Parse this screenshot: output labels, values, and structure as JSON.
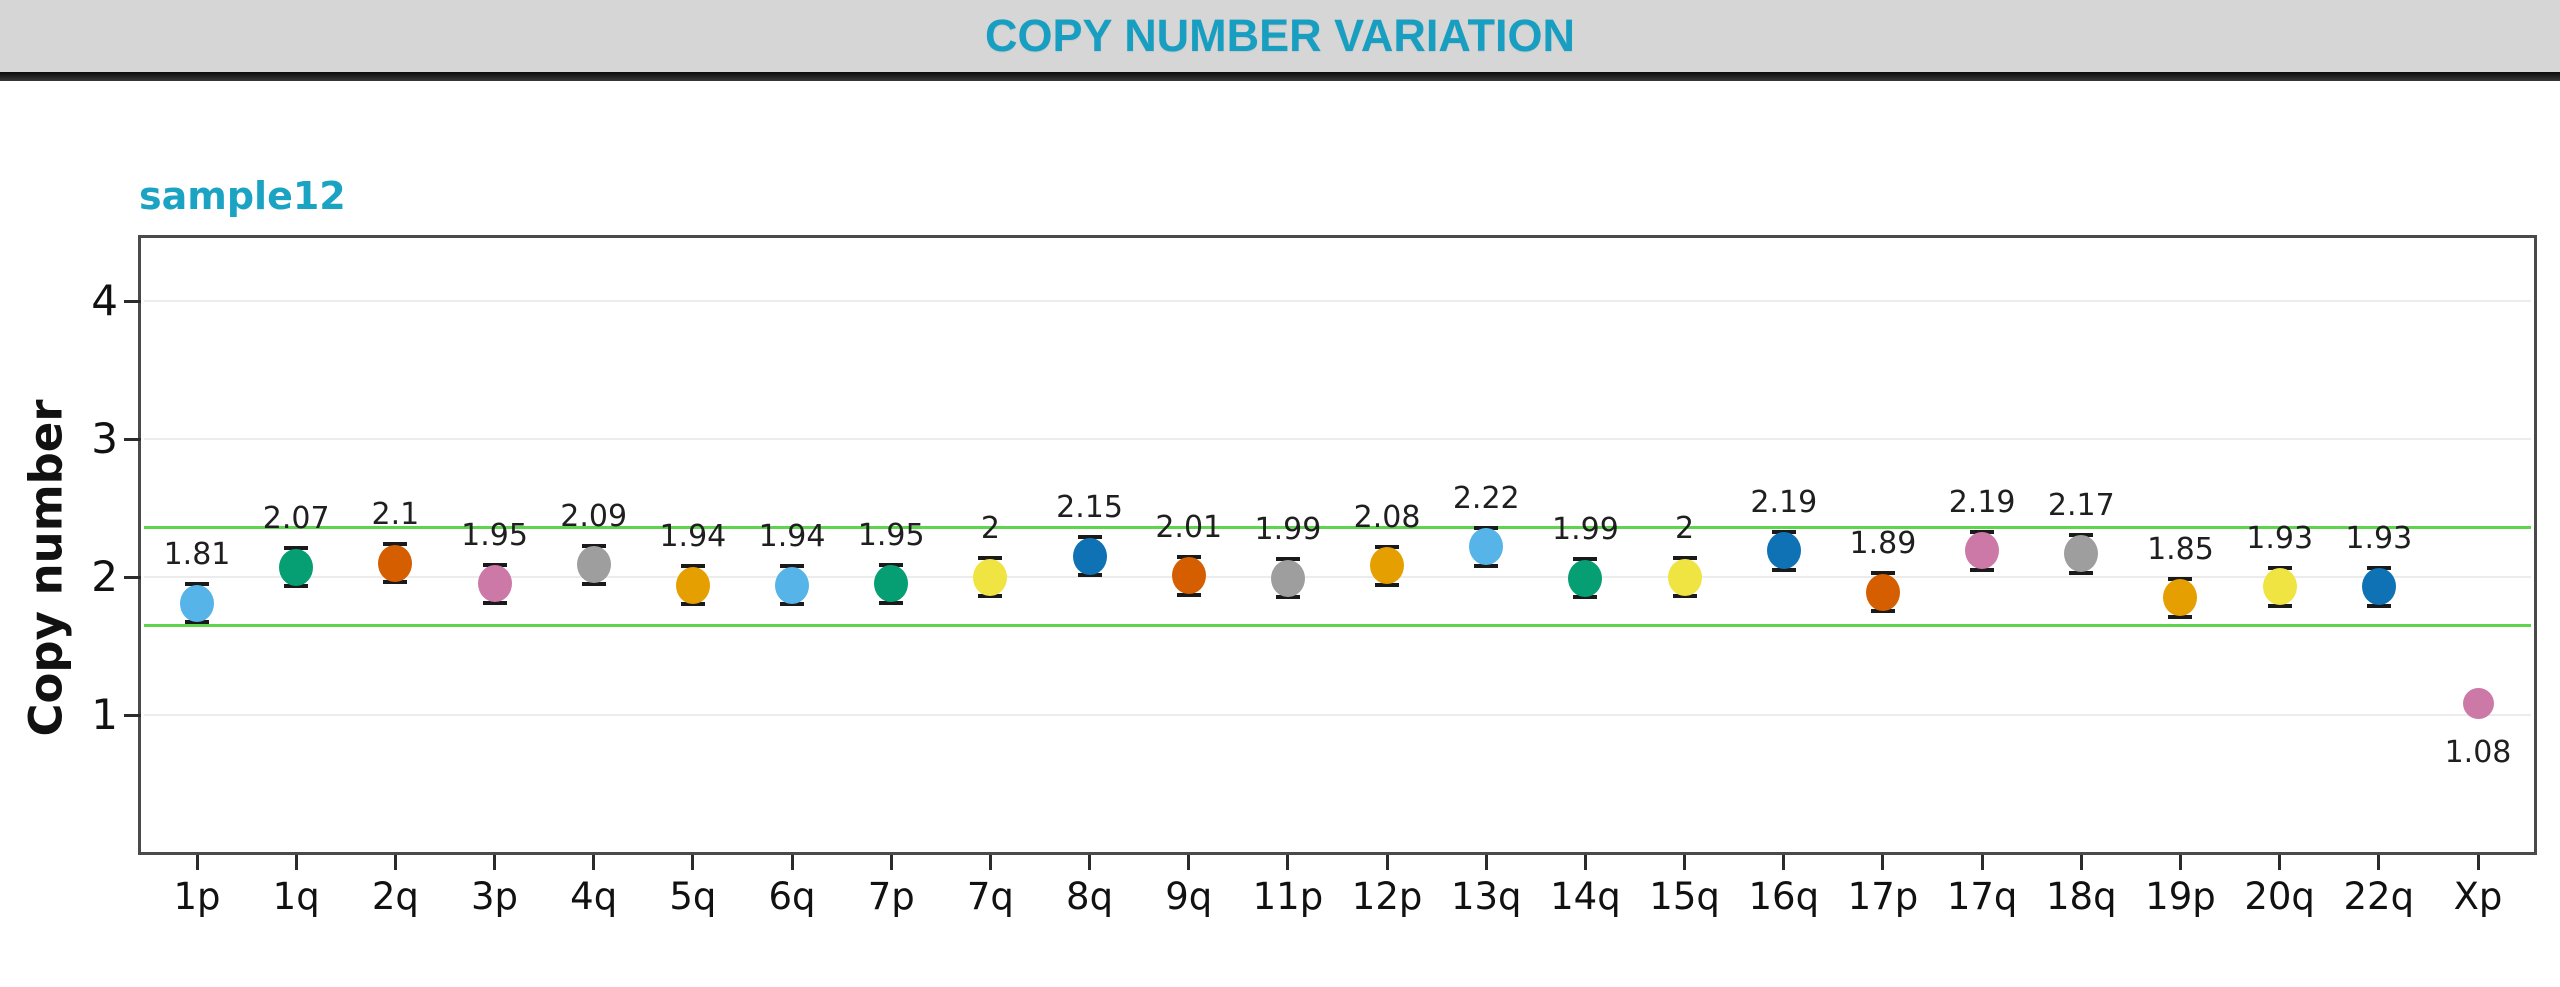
{
  "header": {
    "title": "COPY NUMBER VARIATION",
    "title_color": "#189EC0",
    "background_color": "#D6D6D6"
  },
  "chart": {
    "sample_label": "sample12",
    "sample_label_color": "#1BA3C4",
    "y_axis_title": "Copy number"
  },
  "chart_data": {
    "type": "scatter",
    "title": "sample12",
    "xlabel": "",
    "ylabel": "Copy number",
    "ylim": [
      0,
      4.48
    ],
    "yticks": [
      1,
      2,
      3,
      4
    ],
    "grid": true,
    "legend": "none",
    "thresholds": {
      "upper": 2.36,
      "lower": 1.65,
      "color": "#5ED34E"
    },
    "categories": [
      "1p",
      "1q",
      "2q",
      "3p",
      "4q",
      "5q",
      "6q",
      "7p",
      "7q",
      "8q",
      "9q",
      "11p",
      "12p",
      "13q",
      "14q",
      "15q",
      "16q",
      "17p",
      "17q",
      "18q",
      "19p",
      "20q",
      "22q",
      "Xp"
    ],
    "points": [
      {
        "arm": "1p",
        "value": 1.81,
        "label": "1.81",
        "color": "#56B4E9",
        "error_caps": true,
        "label_position": "above"
      },
      {
        "arm": "1q",
        "value": 2.07,
        "label": "2.07",
        "color": "#069E73",
        "error_caps": true,
        "label_position": "above"
      },
      {
        "arm": "2q",
        "value": 2.1,
        "label": "2.1",
        "color": "#D55E00",
        "error_caps": true,
        "label_position": "above"
      },
      {
        "arm": "3p",
        "value": 1.95,
        "label": "1.95",
        "color": "#CC79A7",
        "error_caps": true,
        "label_position": "above"
      },
      {
        "arm": "4q",
        "value": 2.09,
        "label": "2.09",
        "color": "#9E9E9E",
        "error_caps": true,
        "label_position": "above"
      },
      {
        "arm": "5q",
        "value": 1.94,
        "label": "1.94",
        "color": "#E69F00",
        "error_caps": true,
        "label_position": "above"
      },
      {
        "arm": "6q",
        "value": 1.94,
        "label": "1.94",
        "color": "#56B4E9",
        "error_caps": true,
        "label_position": "above"
      },
      {
        "arm": "7p",
        "value": 1.95,
        "label": "1.95",
        "color": "#069E73",
        "error_caps": true,
        "label_position": "above"
      },
      {
        "arm": "7q",
        "value": 2.0,
        "label": "2",
        "color": "#F0E442",
        "error_caps": true,
        "label_position": "above"
      },
      {
        "arm": "8q",
        "value": 2.15,
        "label": "2.15",
        "color": "#0F72B4",
        "error_caps": true,
        "label_position": "above"
      },
      {
        "arm": "9q",
        "value": 2.01,
        "label": "2.01",
        "color": "#D55E00",
        "error_caps": true,
        "label_position": "above"
      },
      {
        "arm": "11p",
        "value": 1.99,
        "label": "1.99",
        "color": "#9E9E9E",
        "error_caps": true,
        "label_position": "above"
      },
      {
        "arm": "12p",
        "value": 2.08,
        "label": "2.08",
        "color": "#E69F00",
        "error_caps": true,
        "label_position": "above"
      },
      {
        "arm": "13q",
        "value": 2.22,
        "label": "2.22",
        "color": "#56B4E9",
        "error_caps": true,
        "label_position": "above"
      },
      {
        "arm": "14q",
        "value": 1.99,
        "label": "1.99",
        "color": "#069E73",
        "error_caps": true,
        "label_position": "above"
      },
      {
        "arm": "15q",
        "value": 2.0,
        "label": "2",
        "color": "#F0E442",
        "error_caps": true,
        "label_position": "above"
      },
      {
        "arm": "16q",
        "value": 2.19,
        "label": "2.19",
        "color": "#0F72B4",
        "error_caps": true,
        "label_position": "above"
      },
      {
        "arm": "17p",
        "value": 1.89,
        "label": "1.89",
        "color": "#D55E00",
        "error_caps": true,
        "label_position": "above"
      },
      {
        "arm": "17q",
        "value": 2.19,
        "label": "2.19",
        "color": "#CC79A7",
        "error_caps": true,
        "label_position": "above"
      },
      {
        "arm": "18q",
        "value": 2.17,
        "label": "2.17",
        "color": "#9E9E9E",
        "error_caps": true,
        "label_position": "above"
      },
      {
        "arm": "19p",
        "value": 1.85,
        "label": "1.85",
        "color": "#E69F00",
        "error_caps": true,
        "label_position": "above"
      },
      {
        "arm": "20q",
        "value": 1.93,
        "label": "1.93",
        "color": "#F0E442",
        "error_caps": true,
        "label_position": "above"
      },
      {
        "arm": "22q",
        "value": 1.93,
        "label": "1.93",
        "color": "#0F72B4",
        "error_caps": true,
        "label_position": "above"
      },
      {
        "arm": "Xp",
        "value": 1.08,
        "label": "1.08",
        "color": "#CC79A7",
        "error_caps": false,
        "label_position": "below"
      }
    ]
  }
}
